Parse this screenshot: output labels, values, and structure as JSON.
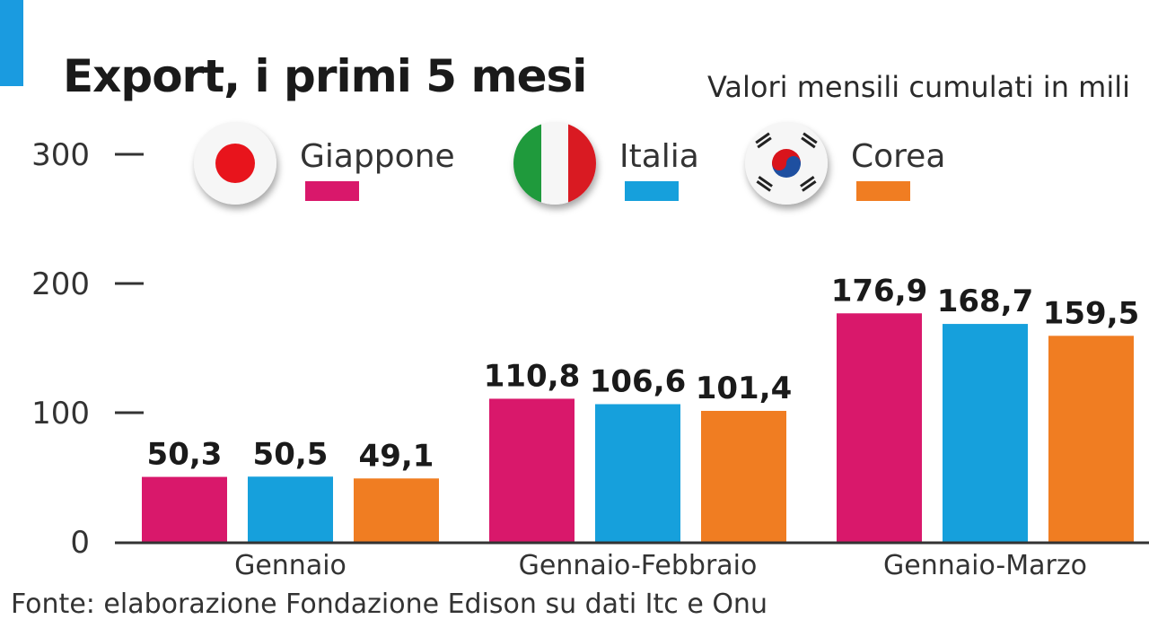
{
  "header": {
    "title": "Export, i primi 5 mesi",
    "subtitle": "Valori mensili cumulati in mili"
  },
  "colors": {
    "accent": "#1a9be0",
    "giappone": "#d9186b",
    "italia": "#16a0dc",
    "corea": "#f07d22",
    "axis": "#333333"
  },
  "legend": [
    {
      "label": "Giappone",
      "flag": "japan-flag-icon"
    },
    {
      "label": "Italia",
      "flag": "italy-flag-icon"
    },
    {
      "label": "Corea",
      "flag": "korea-flag-icon"
    }
  ],
  "chart_data": {
    "type": "bar",
    "title": "Export, i primi 5 mesi",
    "subtitle": "Valori mensili cumulati in mili",
    "categories": [
      "Gennaio",
      "Gennaio-Febbraio",
      "Gennaio-Marzo"
    ],
    "series": [
      {
        "name": "Giappone",
        "values": [
          50.3,
          110.8,
          176.9
        ],
        "labels": [
          "50,3",
          "110,8",
          "176,9"
        ]
      },
      {
        "name": "Italia",
        "values": [
          50.5,
          106.6,
          168.7
        ],
        "labels": [
          "50,5",
          "106,6",
          "168,7"
        ]
      },
      {
        "name": "Corea",
        "values": [
          49.1,
          101.4,
          159.5
        ],
        "labels": [
          "49,1",
          "101,4",
          "159,5"
        ]
      }
    ],
    "yticks": [
      "0",
      "100",
      "200",
      "300"
    ],
    "ylim": [
      0,
      300
    ],
    "grid": false,
    "legend": "top"
  },
  "source": "Fonte: elaborazione Fondazione Edison su dati Itc e Onu"
}
